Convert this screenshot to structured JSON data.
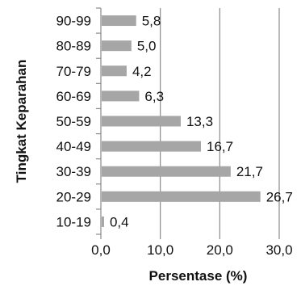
{
  "chart_data": {
    "type": "bar",
    "orientation": "horizontal",
    "categories": [
      "90-99",
      "80-89",
      "70-79",
      "60-69",
      "50-59",
      "40-49",
      "30-39",
      "20-29",
      "10-19"
    ],
    "values": [
      5.8,
      5.0,
      4.2,
      6.3,
      13.3,
      16.7,
      21.7,
      26.7,
      0.4
    ],
    "value_labels": [
      "5,8",
      "5,0",
      "4,2",
      "6,3",
      "13,3",
      "16,7",
      "21,7",
      "26,7",
      "0,4"
    ],
    "x_ticks": [
      0,
      10,
      20,
      30
    ],
    "x_tick_labels": [
      "0,0",
      "10,0",
      "20,0",
      "30,0"
    ],
    "xlim": [
      0,
      30
    ],
    "xlabel": "Persentase (%)",
    "ylabel": "Tingkat Keparahan",
    "bar_color": "#a6a6a6",
    "grid": true,
    "legend": "none"
  }
}
